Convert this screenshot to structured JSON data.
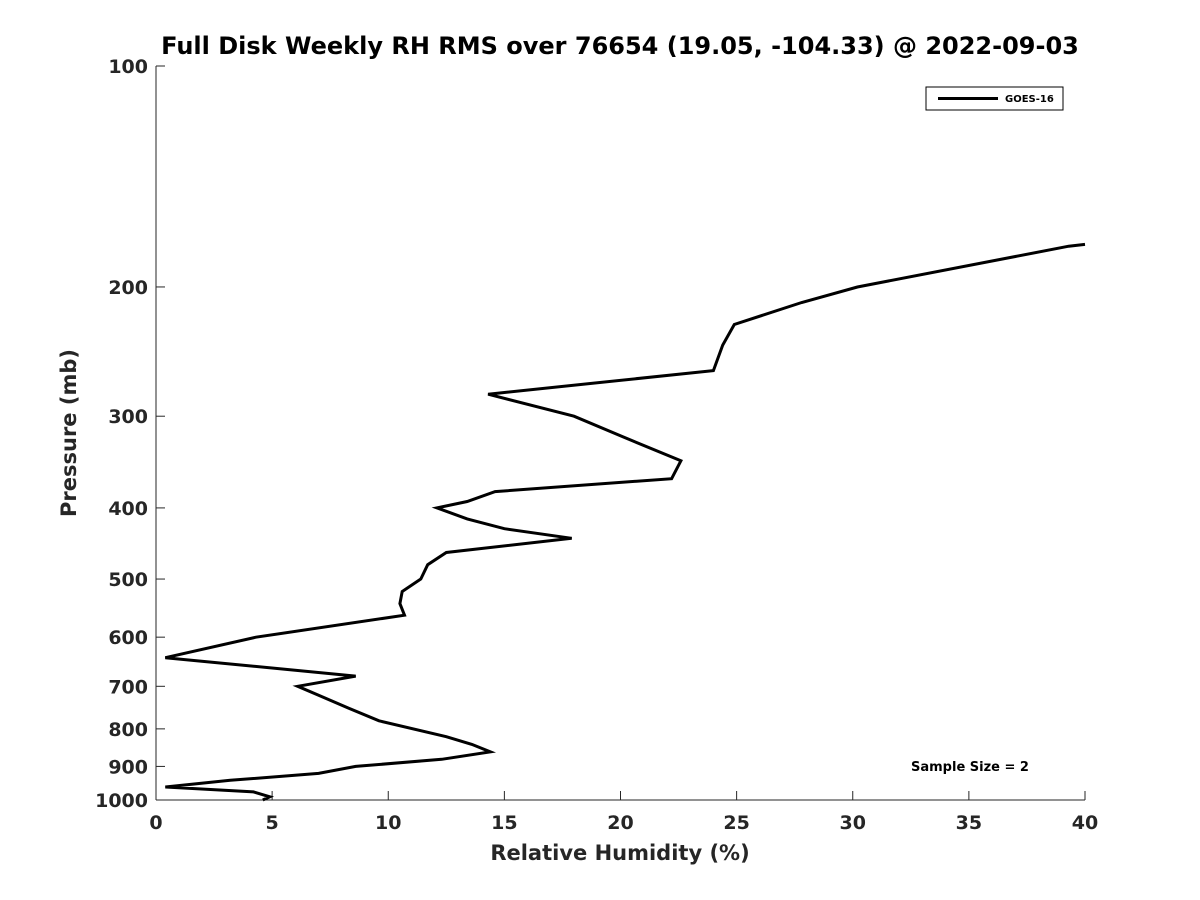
{
  "chart_data": {
    "type": "line",
    "title": "Full Disk Weekly RH RMS over 76654 (19.05, -104.33) @ 2022-09-03",
    "xlabel": "Relative Humidity (%)",
    "ylabel": "Pressure (mb)",
    "xlim": [
      0,
      40
    ],
    "ylim": [
      100,
      1000
    ],
    "yscale": "log",
    "y_reversed": true,
    "xticks": [
      0,
      5,
      10,
      15,
      20,
      25,
      30,
      35,
      40
    ],
    "yticks": [
      100,
      200,
      300,
      400,
      500,
      600,
      700,
      800,
      900,
      1000
    ],
    "grid": false,
    "legend_position": "top-right",
    "annotation": "Sample Size = 2",
    "series": [
      {
        "name": "GOES-16",
        "color": "#000000",
        "points": [
          [
            40.0,
            175
          ],
          [
            39.3,
            176
          ],
          [
            30.2,
            200
          ],
          [
            27.8,
            210
          ],
          [
            24.9,
            225
          ],
          [
            24.4,
            240
          ],
          [
            24.0,
            260
          ],
          [
            14.3,
            280
          ],
          [
            18.0,
            300
          ],
          [
            20.1,
            320
          ],
          [
            22.6,
            345
          ],
          [
            22.2,
            365
          ],
          [
            14.6,
            380
          ],
          [
            13.4,
            392
          ],
          [
            12.1,
            400
          ],
          [
            13.4,
            414
          ],
          [
            15.0,
            427
          ],
          [
            17.9,
            440
          ],
          [
            12.5,
            460
          ],
          [
            11.7,
            478
          ],
          [
            11.4,
            500
          ],
          [
            10.6,
            520
          ],
          [
            10.5,
            540
          ],
          [
            10.7,
            560
          ],
          [
            4.3,
            600
          ],
          [
            0.4,
            640
          ],
          [
            8.6,
            678
          ],
          [
            6.1,
            700
          ],
          [
            7.0,
            720
          ],
          [
            8.3,
            750
          ],
          [
            9.6,
            780
          ],
          [
            12.5,
            820
          ],
          [
            13.6,
            840
          ],
          [
            14.4,
            860
          ],
          [
            12.3,
            880
          ],
          [
            8.6,
            900
          ],
          [
            7.0,
            920
          ],
          [
            3.2,
            940
          ],
          [
            0.4,
            960
          ],
          [
            4.2,
            975
          ],
          [
            4.9,
            990
          ],
          [
            4.6,
            1000
          ]
        ]
      }
    ]
  }
}
